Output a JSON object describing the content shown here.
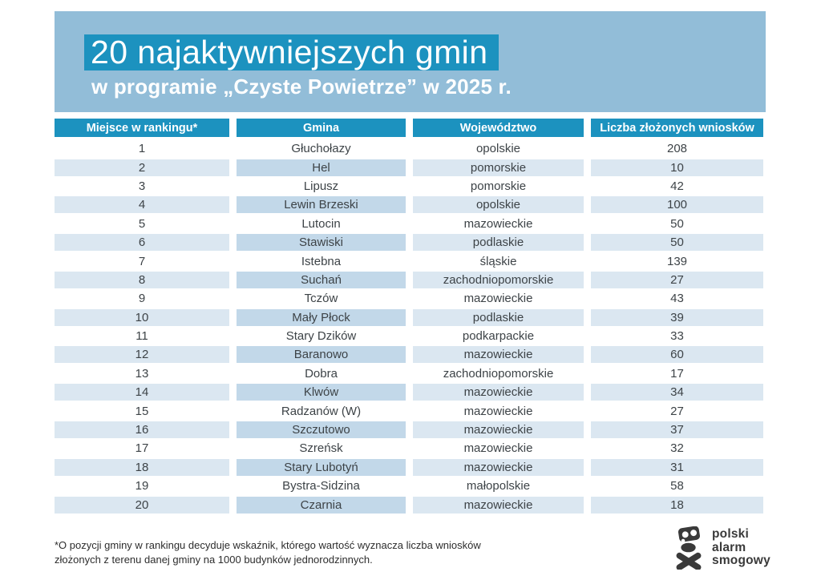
{
  "header": {
    "title": "20 najaktywniejszych gmin",
    "subtitle": "w programie „Czyste Powietrze” w 2025 r."
  },
  "chart_data": {
    "type": "table",
    "title": "20 najaktywniejszych gmin w programie „Czyste Powietrze” w 2025 r.",
    "columns": [
      "Miejsce w rankingu*",
      "Gmina",
      "Województwo",
      "Liczba złożonych wniosków"
    ],
    "rows": [
      {
        "rank": "1",
        "gmina": "Głuchołazy",
        "wojewodztwo": "opolskie",
        "wnioski": "208"
      },
      {
        "rank": "2",
        "gmina": "Hel",
        "wojewodztwo": "pomorskie",
        "wnioski": "10"
      },
      {
        "rank": "3",
        "gmina": "Lipusz",
        "wojewodztwo": "pomorskie",
        "wnioski": "42"
      },
      {
        "rank": "4",
        "gmina": "Lewin Brzeski",
        "wojewodztwo": "opolskie",
        "wnioski": "100"
      },
      {
        "rank": "5",
        "gmina": "Lutocin",
        "wojewodztwo": "mazowieckie",
        "wnioski": "50"
      },
      {
        "rank": "6",
        "gmina": "Stawiski",
        "wojewodztwo": "podlaskie",
        "wnioski": "50"
      },
      {
        "rank": "7",
        "gmina": "Istebna",
        "wojewodztwo": "śląskie",
        "wnioski": "139"
      },
      {
        "rank": "8",
        "gmina": "Suchań",
        "wojewodztwo": "zachodniopomorskie",
        "wnioski": "27"
      },
      {
        "rank": "9",
        "gmina": "Tczów",
        "wojewodztwo": "mazowieckie",
        "wnioski": "43"
      },
      {
        "rank": "10",
        "gmina": "Mały Płock",
        "wojewodztwo": "podlaskie",
        "wnioski": "39"
      },
      {
        "rank": "11",
        "gmina": "Stary Dzików",
        "wojewodztwo": "podkarpackie",
        "wnioski": "33"
      },
      {
        "rank": "12",
        "gmina": "Baranowo",
        "wojewodztwo": "mazowieckie",
        "wnioski": "60"
      },
      {
        "rank": "13",
        "gmina": "Dobra",
        "wojewodztwo": "zachodniopomorskie",
        "wnioski": "17"
      },
      {
        "rank": "14",
        "gmina": "Klwów",
        "wojewodztwo": "mazowieckie",
        "wnioski": "34"
      },
      {
        "rank": "15",
        "gmina": "Radzanów (W)",
        "wojewodztwo": "mazowieckie",
        "wnioski": "27"
      },
      {
        "rank": "16",
        "gmina": "Szczutowo",
        "wojewodztwo": "mazowieckie",
        "wnioski": "37"
      },
      {
        "rank": "17",
        "gmina": "Szreńsk",
        "wojewodztwo": "mazowieckie",
        "wnioski": "32"
      },
      {
        "rank": "18",
        "gmina": "Stary Lubotyń",
        "wojewodztwo": "mazowieckie",
        "wnioski": "31"
      },
      {
        "rank": "19",
        "gmina": "Bystra-Sidzina",
        "wojewodztwo": "małopolskie",
        "wnioski": "58"
      },
      {
        "rank": "20",
        "gmina": "Czarnia",
        "wojewodztwo": "mazowieckie",
        "wnioski": "18"
      }
    ]
  },
  "footnote": {
    "text": "*O pozycji gminy w rankingu decyduje wskaźnik, którego wartość wyznacza liczba wniosków złożonych z terenu danej gminy na 1000 budynków jednorodzinnych."
  },
  "logo": {
    "icon": "gas-mask-skull-crossbones-icon",
    "lines": [
      "polski",
      "alarm",
      "smogowy"
    ]
  },
  "colors": {
    "band_background": "#92bdd8",
    "accent_teal": "#1c92bf",
    "stripe_light": "#dbe7f1",
    "stripe_gmina": "#c2d8e9",
    "text_dark": "#3d4347",
    "logo_dark": "#3a3a3a"
  }
}
